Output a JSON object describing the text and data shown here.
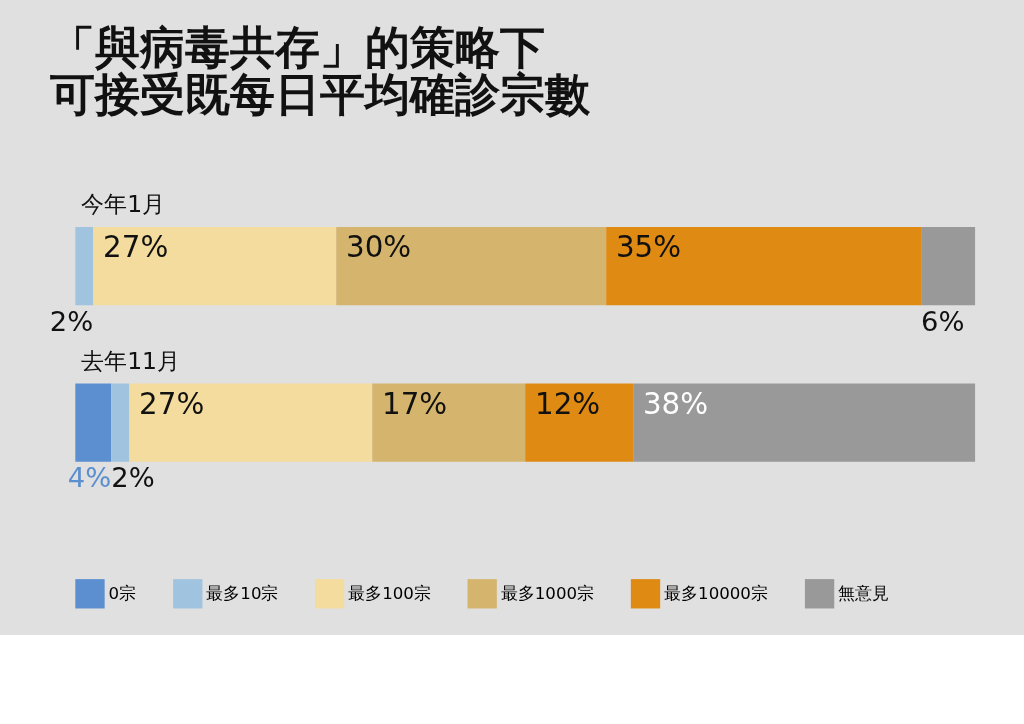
{
  "chart_data": {
    "type": "bar",
    "orientation": "horizontal",
    "stacked": true,
    "title": [
      "「與病毒共存」的策略下",
      "可接受既每日平均確診宗數"
    ],
    "categories": [
      "今年1月",
      "去年11月"
    ],
    "xlim": [
      0,
      100
    ],
    "tick_labels": false,
    "legend": "bottom",
    "series": [
      {
        "name": "0宗",
        "color": "#5b8fd0",
        "values": [
          null,
          4
        ],
        "value_labels": [
          null,
          "4%"
        ]
      },
      {
        "name": "最多10宗",
        "color": "#a0c4e0",
        "values": [
          2,
          2
        ],
        "value_labels": [
          "2%",
          "2%"
        ]
      },
      {
        "name": "最多100宗",
        "color": "#f4dc9e",
        "values": [
          27,
          27
        ],
        "value_labels": [
          "27%",
          "27%"
        ]
      },
      {
        "name": "最多1000宗",
        "color": "#d5b46e",
        "values": [
          30,
          17
        ],
        "value_labels": [
          "30%",
          "17%"
        ]
      },
      {
        "name": "最多10000宗",
        "color": "#df8a12",
        "values": [
          35,
          12
        ],
        "value_labels": [
          "35%",
          "12%"
        ]
      },
      {
        "name": "無意見",
        "color": "#999999",
        "values": [
          6,
          38
        ],
        "value_labels": [
          "6%",
          "38%"
        ]
      }
    ]
  }
}
